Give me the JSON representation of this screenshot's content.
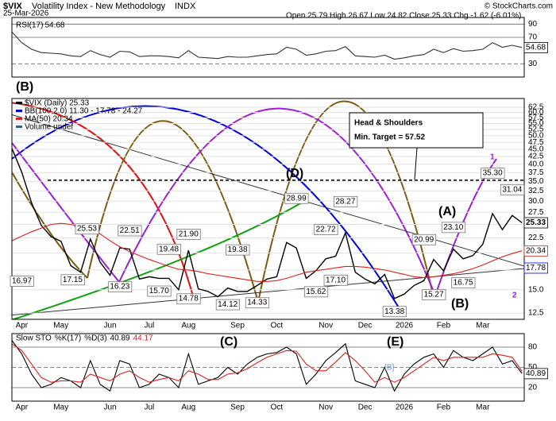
{
  "header": {
    "symbol": "$VIX",
    "title": "Volatility Index - New Methodology",
    "exchange": "INDX",
    "date": "25-Mar-2026",
    "quote": "Open 25.79 High 26.67 Low 24.82 Close 25.33 Chg -1.62 (-6.01%)",
    "credit": "© StockCharts.com"
  },
  "chart_data": [
    {
      "type": "line",
      "ylim": [
        10,
        100
      ],
      "yticks": [
        30,
        70,
        90
      ],
      "grid": true,
      "series": [
        {
          "name": "RSI(17)",
          "color": "#333333",
          "values": [
            78,
            62,
            52,
            47,
            46,
            45,
            42,
            41,
            50,
            44,
            40,
            49,
            48,
            41,
            42,
            42,
            41,
            39,
            50,
            40,
            39,
            38,
            41,
            40,
            40,
            42,
            44,
            45,
            55,
            52,
            43,
            45,
            49,
            50,
            56,
            42,
            41,
            40,
            43,
            37,
            39,
            42,
            44,
            52,
            47,
            53,
            49,
            50,
            52,
            62,
            55,
            58,
            54.68
          ]
        }
      ]
    },
    {
      "type": "line",
      "log": true,
      "ylim": [
        11.9,
        66.9
      ],
      "yticks": [
        12.5,
        {
          "value": 15,
          "label": "15.0"
        },
        17.5,
        {
          "value": 20,
          "label": "20.0"
        },
        22.5,
        {
          "value": 25,
          "label": "25.0"
        },
        27.5,
        {
          "value": 30,
          "label": "30.0"
        },
        32.5,
        {
          "value": 35,
          "label": "35.0"
        },
        37.5,
        {
          "value": 40,
          "label": "40.0"
        },
        42.5,
        {
          "value": 45,
          "label": "45.0"
        },
        47.5,
        {
          "value": 50,
          "label": "50.0"
        },
        52.5,
        {
          "value": 55,
          "label": "55.0"
        },
        57.5,
        {
          "value": 60,
          "label": "60.0"
        },
        62.5
      ],
      "grid": true,
      "categories": [
        null,
        "Apr",
        null,
        null,
        null,
        "May",
        null,
        null,
        null,
        null,
        "Jun",
        null,
        null,
        null,
        "Jul",
        null,
        null,
        null,
        "Aug",
        null,
        null,
        null,
        null,
        "Sep",
        null,
        null,
        null,
        "Oct",
        null,
        null,
        null,
        null,
        "Nov",
        null,
        null,
        null,
        "Dec",
        null,
        null,
        null,
        "2026",
        null,
        null,
        null,
        "Feb",
        null,
        null,
        null,
        "Mar",
        null,
        null,
        null,
        null
      ],
      "series": [
        {
          "name": "$VIX (Daily) 25.33",
          "color": "#000000",
          "values": [
            45.3,
            37.6,
            29.6,
            24.8,
            22.7,
            21.9,
            18.1,
            17.2,
            22.3,
            18.6,
            16.8,
            20.8,
            20.6,
            16.3,
            16.6,
            16.4,
            16.4,
            15.0,
            20.4,
            15.1,
            14.8,
            14.2,
            15.2,
            14.8,
            14.8,
            15.5,
            16.3,
            16.6,
            21.7,
            20.8,
            16.4,
            17.4,
            19.1,
            19.5,
            23.4,
            17.2,
            16.3,
            15.7,
            16.9,
            14.0,
            14.5,
            15.5,
            16.1,
            19.0,
            17.4,
            20.6,
            19.1,
            19.6,
            21.4,
            27.2,
            24.0,
            26.8,
            25.33
          ]
        },
        {
          "name": "MA(50) 20.34",
          "color": "#d62020",
          "values": [
            22.0,
            22.8,
            23.6,
            24.3,
            25.0,
            25.2,
            25.0,
            24.6,
            24.2,
            23.2,
            22.0,
            21.0,
            20.2,
            19.6,
            19.0,
            18.5,
            18.0,
            17.6,
            17.5,
            17.3,
            17.0,
            16.8,
            16.6,
            16.4,
            16.2,
            16.0,
            16.0,
            16.1,
            16.4,
            16.8,
            17.2,
            17.4,
            17.6,
            17.8,
            18.0,
            18.0,
            17.9,
            17.7,
            17.5,
            17.2,
            16.9,
            16.6,
            16.5,
            16.6,
            16.8,
            17.0,
            17.3,
            17.7,
            18.2,
            18.8,
            19.4,
            19.9,
            20.34
          ]
        }
      ],
      "legend_extra": [
        "BB(100,2.0) 11.30 - 17.78 - 24.27",
        "Volume undef"
      ],
      "price_labels": [
        16.97,
        25.53,
        17.15,
        16.23,
        22.51,
        {
          "value": 15.7,
          "label": "15.70"
        },
        19.48,
        {
          "value": 21.9,
          "label": "21.90"
        },
        14.78,
        14.12,
        19.38,
        14.33,
        28.99,
        15.62,
        22.72,
        {
          "value": 17.1,
          "label": "17.10"
        },
        28.27,
        13.38,
        20.99,
        15.27,
        {
          "value": 23.1,
          "label": "23.10"
        },
        16.75,
        {
          "value": 35.3,
          "label": "35.30"
        },
        31.04
      ],
      "bb_mid_last": 17.78,
      "neckline": 35.3,
      "annotations": {
        "box_title": "Head & Shoulders",
        "box_target": "Min. Target = 57.52",
        "wave_D": "(D)",
        "wave_A": "(A)",
        "wave_B": "(B)",
        "wave_B_top": "(B)",
        "count_1": "1",
        "count_2": "2"
      }
    },
    {
      "type": "line",
      "title": "Slow STO",
      "ylim": [
        0,
        100
      ],
      "yticks": [
        20,
        50,
        80
      ],
      "grid": true,
      "categories": [
        null,
        "Apr",
        null,
        null,
        null,
        "May",
        null,
        null,
        null,
        null,
        "Jun",
        null,
        null,
        null,
        "Jul",
        null,
        null,
        null,
        "Aug",
        null,
        null,
        null,
        null,
        "Sep",
        null,
        null,
        null,
        "Oct",
        null,
        null,
        null,
        null,
        "Nov",
        null,
        null,
        null,
        "Dec",
        null,
        null,
        null,
        "2026",
        null,
        null,
        null,
        "Feb",
        null,
        null,
        null,
        "Mar",
        null,
        null,
        null,
        null
      ],
      "series": [
        {
          "name": "%K(17)",
          "color": "#000000",
          "values": [
            90,
            70,
            40,
            20,
            25,
            35,
            30,
            20,
            60,
            25,
            15,
            60,
            55,
            20,
            25,
            40,
            35,
            20,
            70,
            25,
            30,
            35,
            50,
            40,
            55,
            65,
            70,
            72,
            80,
            70,
            25,
            40,
            60,
            72,
            85,
            30,
            25,
            20,
            50,
            15,
            40,
            55,
            65,
            70,
            50,
            75,
            65,
            60,
            70,
            80,
            55,
            60,
            40.89
          ]
        },
        {
          "name": "%D(3)",
          "color": "#d62020",
          "values": [
            85,
            75,
            55,
            35,
            28,
            30,
            30,
            28,
            40,
            35,
            30,
            40,
            45,
            35,
            28,
            32,
            35,
            30,
            45,
            40,
            32,
            32,
            40,
            42,
            48,
            57,
            65,
            70,
            75,
            74,
            55,
            45,
            45,
            58,
            72,
            60,
            45,
            28,
            35,
            28,
            35,
            45,
            55,
            65,
            60,
            65,
            65,
            65,
            65,
            70,
            68,
            65,
            44.17
          ]
        }
      ],
      "annotations": {
        "wave_C": "(C)",
        "wave_E": "(E)",
        "wave_B": "[B]"
      }
    }
  ]
}
